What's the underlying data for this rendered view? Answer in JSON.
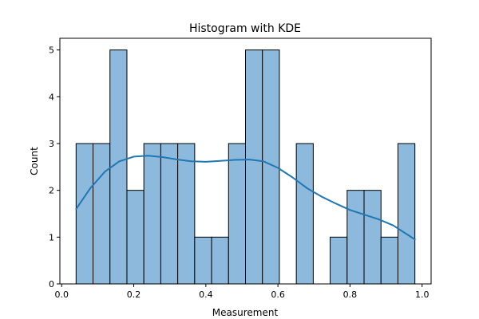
{
  "chart_data": {
    "type": "histogram",
    "title": "Histogram with KDE",
    "xlabel": "Measurement",
    "ylabel": "Count",
    "xlim": [
      -0.005,
      1.025
    ],
    "ylim": [
      0,
      5.25
    ],
    "xticks": [
      0.0,
      0.2,
      0.4,
      0.6,
      0.8,
      1.0
    ],
    "xtick_labels": [
      "0.0",
      "0.2",
      "0.4",
      "0.6",
      "0.8",
      "1.0"
    ],
    "yticks": [
      0,
      1,
      2,
      3,
      4,
      5
    ],
    "ytick_labels": [
      "0",
      "1",
      "2",
      "3",
      "4",
      "5"
    ],
    "grid": false,
    "bins": {
      "start": 0.04,
      "width": 0.047,
      "counts": [
        3,
        3,
        5,
        2,
        3,
        3,
        3,
        1,
        1,
        3,
        5,
        5,
        0,
        3,
        0,
        1,
        2,
        2,
        1,
        3
      ]
    },
    "kde": {
      "x": [
        0.04,
        0.08,
        0.12,
        0.16,
        0.2,
        0.24,
        0.28,
        0.32,
        0.36,
        0.4,
        0.44,
        0.48,
        0.52,
        0.56,
        0.6,
        0.64,
        0.68,
        0.72,
        0.76,
        0.8,
        0.84,
        0.88,
        0.92,
        0.96,
        0.98
      ],
      "y": [
        1.6,
        2.05,
        2.4,
        2.62,
        2.72,
        2.74,
        2.71,
        2.66,
        2.62,
        2.61,
        2.63,
        2.65,
        2.66,
        2.62,
        2.48,
        2.28,
        2.05,
        1.87,
        1.72,
        1.58,
        1.48,
        1.38,
        1.25,
        1.05,
        0.95
      ]
    },
    "colors": {
      "bar_fill": "#8db9dc",
      "bar_edge": "#000000",
      "kde_line": "#1f77b4"
    }
  }
}
